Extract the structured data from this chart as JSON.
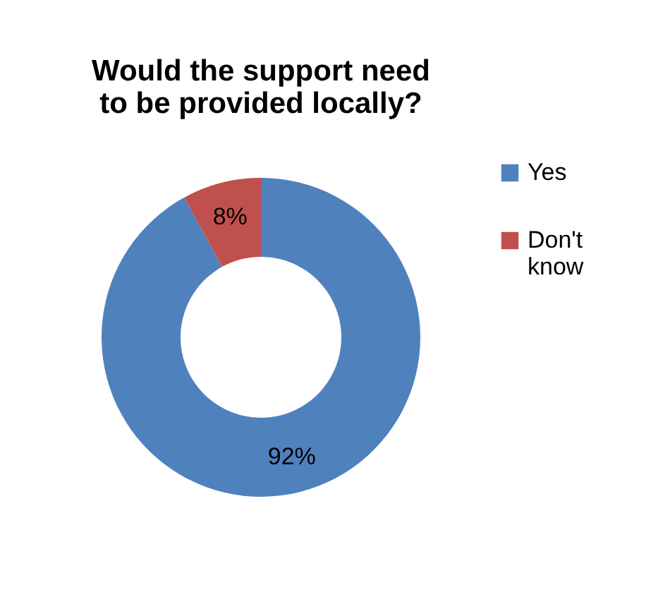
{
  "chart_data": {
    "type": "donut",
    "title": "Would the support need to be provided locally?",
    "categories": [
      "Yes",
      "Don't know"
    ],
    "values": [
      92,
      8
    ],
    "colors": [
      "#4f81bd",
      "#c0504d"
    ],
    "value_labels": [
      "92%",
      "8%"
    ],
    "legend": "right"
  }
}
